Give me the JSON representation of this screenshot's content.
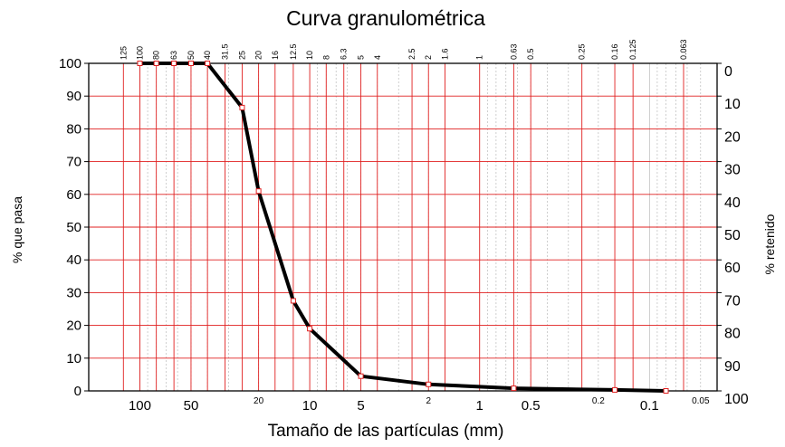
{
  "chart_data": {
    "type": "line",
    "title": "Curva granulométrica",
    "xlabel": "Tamaño de las partículas (mm)",
    "ylabel": "% que pasa",
    "ylabel_right": "% retenido",
    "x_scale": "log-reversed",
    "xlim": [
      200,
      0.04
    ],
    "ylim": [
      0,
      100
    ],
    "y_ticks": [
      "0",
      "10",
      "20",
      "30",
      "40",
      "50",
      "60",
      "70",
      "80",
      "90",
      "100"
    ],
    "y_ticks_right": [
      "100",
      "90",
      "80",
      "70",
      "60",
      "50",
      "40",
      "30",
      "20",
      "10",
      "0"
    ],
    "sieves": [
      "125",
      "100",
      "80",
      "63",
      "50",
      "40",
      "31.5",
      "25",
      "20",
      "16",
      "12.5",
      "10",
      "8",
      "6.3",
      "5",
      "4",
      "2.5",
      "2",
      "1.6",
      "1",
      "0.63",
      "0.5",
      "0.25",
      "0.16",
      "0.125",
      "0.063"
    ],
    "bottom_ticks": [
      {
        "label": "100",
        "value": 100,
        "size": "large"
      },
      {
        "label": "50",
        "value": 50,
        "size": "large"
      },
      {
        "label": "20",
        "value": 20,
        "size": "small"
      },
      {
        "label": "10",
        "value": 10,
        "size": "large"
      },
      {
        "label": "5",
        "value": 5,
        "size": "large"
      },
      {
        "label": "2",
        "value": 2,
        "size": "small"
      },
      {
        "label": "1",
        "value": 1,
        "size": "large"
      },
      {
        "label": "0.5",
        "value": 0.5,
        "size": "large"
      },
      {
        "label": "0.2",
        "value": 0.2,
        "size": "small"
      },
      {
        "label": "0.1",
        "value": 0.1,
        "size": "large"
      },
      {
        "label": "0.05",
        "value": 0.05,
        "size": "small"
      }
    ],
    "grid": true,
    "series": [
      {
        "color": "#000000",
        "x": [
          100,
          80,
          63,
          50,
          40,
          25,
          20,
          12.5,
          10,
          5,
          2,
          0.63,
          0.16,
          0.08
        ],
        "y": [
          100,
          100,
          100,
          100,
          100,
          86.5,
          61,
          27.5,
          19,
          4.5,
          2,
          0.8,
          0.3,
          0
        ]
      }
    ],
    "colors": {
      "grid_major": "#e02020",
      "grid_minor": "#b0b0b0",
      "curve": "#000000"
    }
  }
}
